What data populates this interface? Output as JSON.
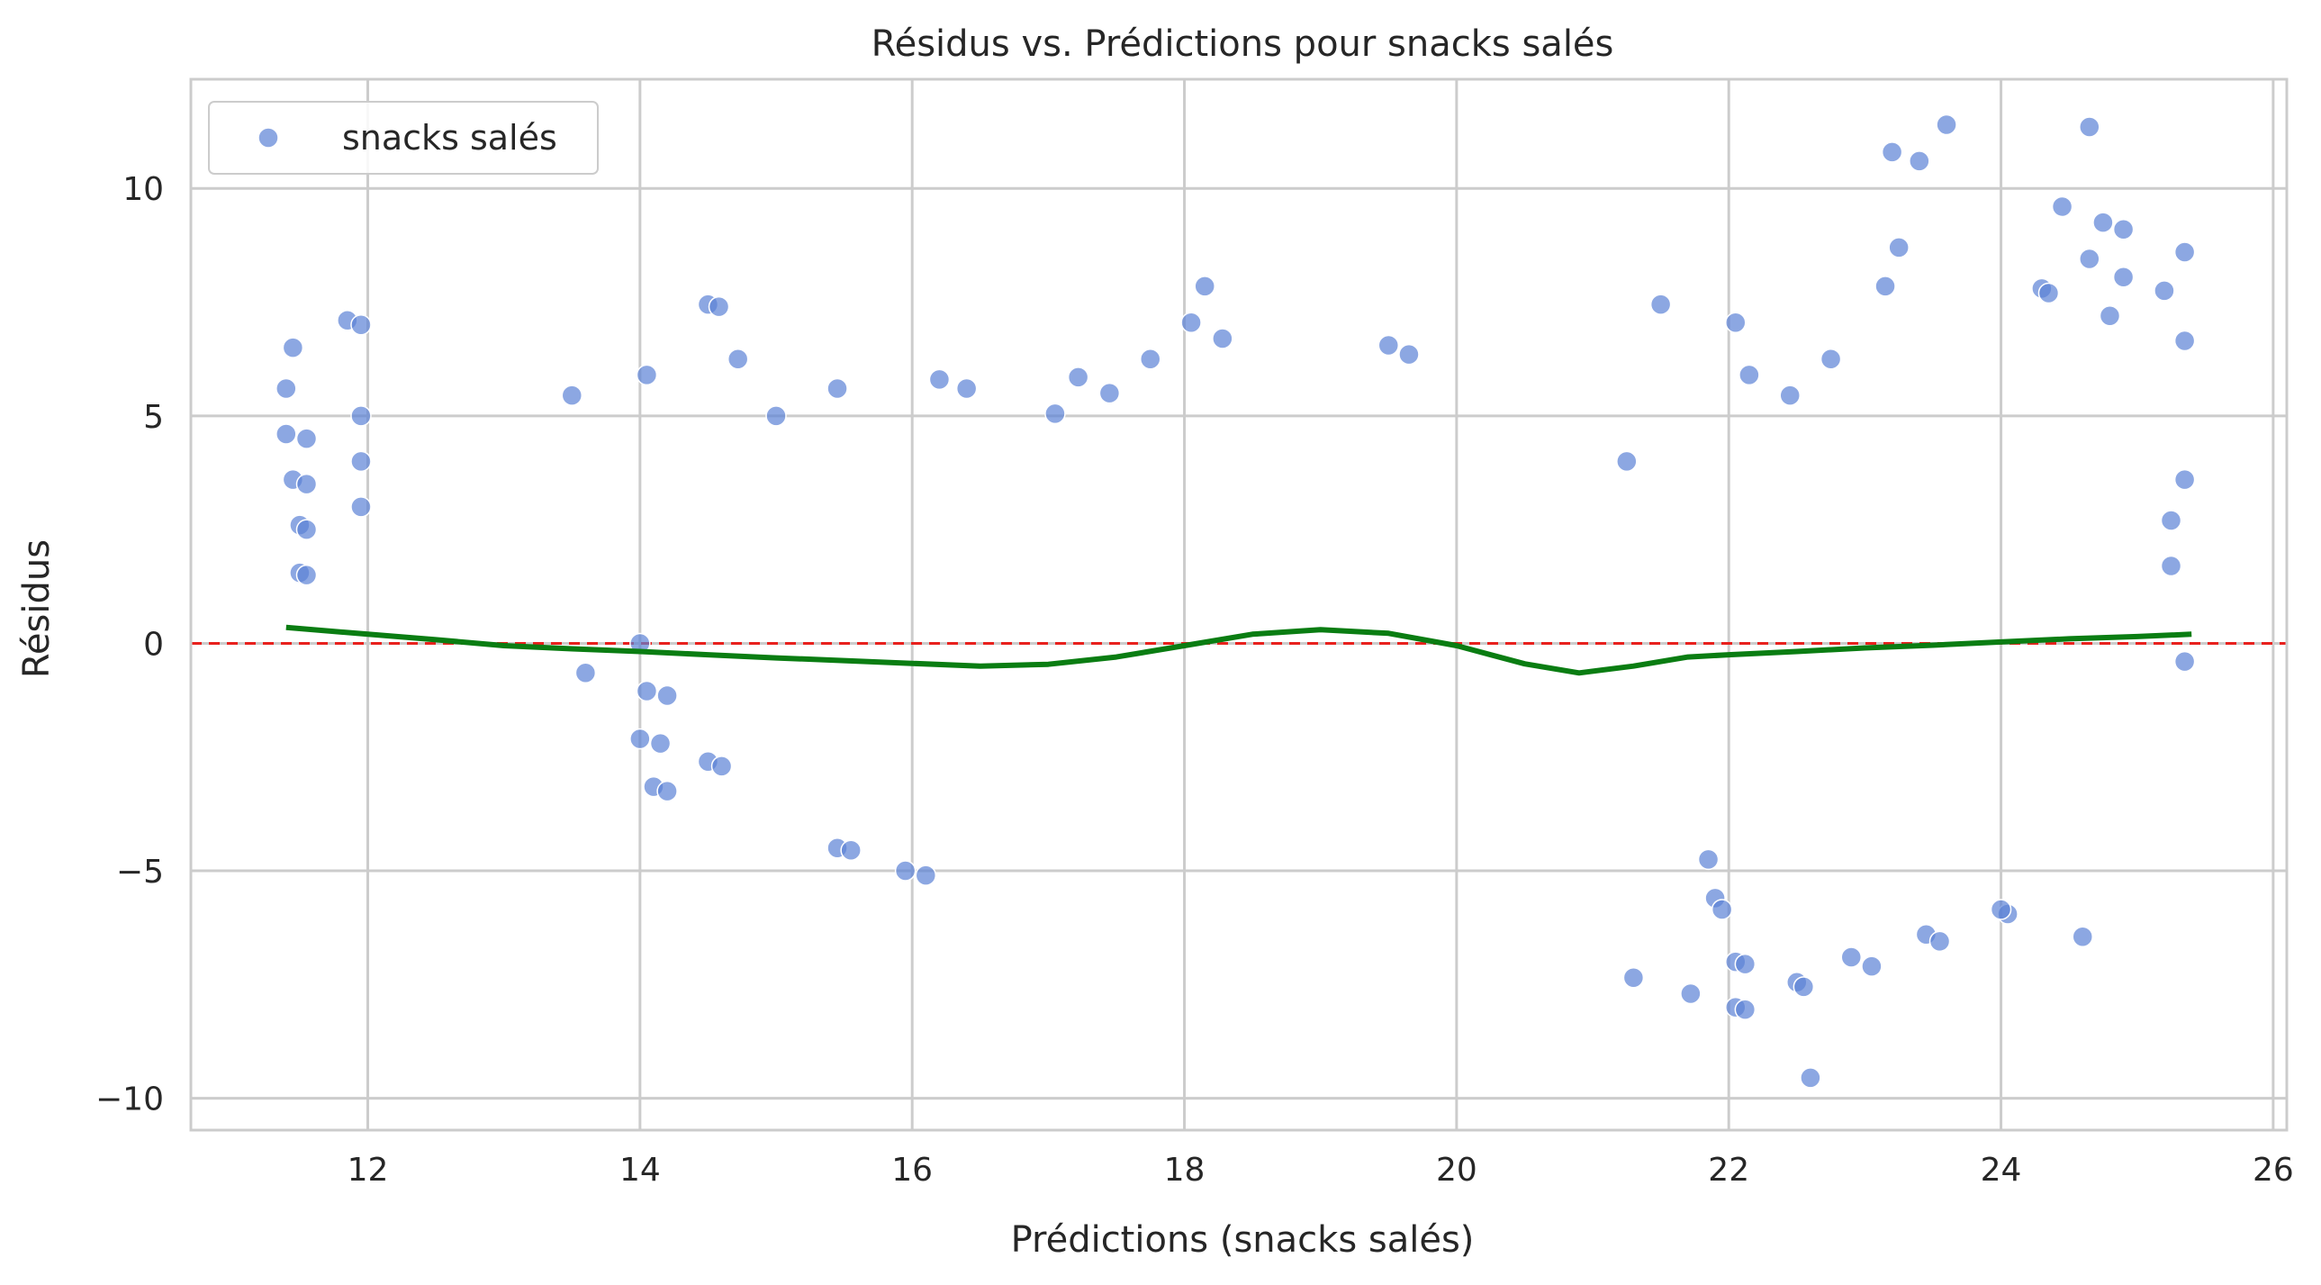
{
  "chart_data": {
    "type": "scatter",
    "title": "Résidus vs. Prédictions pour snacks salés",
    "xlabel": "Prédictions (snacks salés)",
    "ylabel": "Résidus",
    "xlim": [
      10.7,
      26.1
    ],
    "ylim": [
      -10.7,
      12.4
    ],
    "xticks": [
      12,
      14,
      16,
      18,
      20,
      22,
      24,
      26
    ],
    "yticks": [
      -10,
      -5,
      0,
      5,
      10
    ],
    "xtick_labels": [
      "12",
      "14",
      "16",
      "18",
      "20",
      "22",
      "24",
      "26"
    ],
    "ytick_labels": [
      "−10",
      "−5",
      "0",
      "5",
      "10"
    ],
    "grid": true,
    "legend_position": "top-left",
    "reference_line": {
      "y": 0,
      "style": "dashed",
      "color": "#e8211d"
    },
    "colors": {
      "points": "#5b82d6",
      "trend": "#0a7d12",
      "grid": "#cccccc",
      "axes": "#cccccc"
    },
    "series": [
      {
        "name": "snacks salés",
        "kind": "scatter",
        "points": [
          [
            11.4,
            5.6
          ],
          [
            11.45,
            6.5
          ],
          [
            11.4,
            4.6
          ],
          [
            11.45,
            3.6
          ],
          [
            11.5,
            2.6
          ],
          [
            11.5,
            1.55
          ],
          [
            11.55,
            4.5
          ],
          [
            11.55,
            3.5
          ],
          [
            11.55,
            2.5
          ],
          [
            11.55,
            1.5
          ],
          [
            11.85,
            7.1
          ],
          [
            11.95,
            7.0
          ],
          [
            11.95,
            5.0
          ],
          [
            11.95,
            4.0
          ],
          [
            11.95,
            3.0
          ],
          [
            13.5,
            5.45
          ],
          [
            14.05,
            5.9
          ],
          [
            14.5,
            7.45
          ],
          [
            14.58,
            7.4
          ],
          [
            14.72,
            6.25
          ],
          [
            15.0,
            5.0
          ],
          [
            15.45,
            5.6
          ],
          [
            16.2,
            5.8
          ],
          [
            16.4,
            5.6
          ],
          [
            17.05,
            5.05
          ],
          [
            17.22,
            5.85
          ],
          [
            17.45,
            5.5
          ],
          [
            17.75,
            6.25
          ],
          [
            18.05,
            7.05
          ],
          [
            18.15,
            7.85
          ],
          [
            18.28,
            6.7
          ],
          [
            19.5,
            6.55
          ],
          [
            19.65,
            6.35
          ],
          [
            21.25,
            4.0
          ],
          [
            21.5,
            7.45
          ],
          [
            21.3,
            -7.35
          ],
          [
            21.72,
            -7.7
          ],
          [
            22.05,
            7.05
          ],
          [
            22.15,
            5.9
          ],
          [
            22.45,
            5.45
          ],
          [
            22.75,
            6.25
          ],
          [
            23.15,
            7.85
          ],
          [
            23.2,
            10.8
          ],
          [
            23.25,
            8.7
          ],
          [
            23.4,
            10.6
          ],
          [
            23.6,
            11.4
          ],
          [
            24.3,
            7.8
          ],
          [
            24.35,
            7.7
          ],
          [
            24.45,
            9.6
          ],
          [
            24.65,
            8.45
          ],
          [
            24.65,
            11.35
          ],
          [
            24.75,
            9.25
          ],
          [
            24.9,
            9.1
          ],
          [
            24.9,
            8.05
          ],
          [
            24.8,
            7.2
          ],
          [
            25.2,
            7.75
          ],
          [
            25.25,
            2.7
          ],
          [
            25.25,
            1.7
          ],
          [
            25.35,
            8.6
          ],
          [
            25.35,
            6.65
          ],
          [
            25.35,
            3.6
          ],
          [
            25.35,
            -0.4
          ],
          [
            22.05,
            -7.0
          ],
          [
            22.12,
            -7.05
          ],
          [
            22.05,
            -8.0
          ],
          [
            22.12,
            -8.05
          ],
          [
            22.6,
            -9.55
          ],
          [
            22.5,
            -7.45
          ],
          [
            22.55,
            -7.55
          ],
          [
            22.9,
            -6.9
          ],
          [
            23.05,
            -7.1
          ],
          [
            23.45,
            -6.4
          ],
          [
            23.55,
            -6.55
          ],
          [
            24.6,
            -6.45
          ],
          [
            24.05,
            -5.95
          ],
          [
            24.0,
            -5.85
          ],
          [
            21.85,
            -4.75
          ],
          [
            21.9,
            -5.6
          ],
          [
            21.95,
            -5.85
          ],
          [
            16.1,
            -5.1
          ],
          [
            15.95,
            -5.0
          ],
          [
            15.45,
            -4.5
          ],
          [
            15.55,
            -4.55
          ],
          [
            14.1,
            -3.15
          ],
          [
            14.2,
            -3.25
          ],
          [
            14.0,
            -2.1
          ],
          [
            14.15,
            -2.2
          ],
          [
            14.05,
            -1.05
          ],
          [
            14.2,
            -1.15
          ],
          [
            14.5,
            -2.6
          ],
          [
            14.6,
            -2.7
          ],
          [
            13.6,
            -0.65
          ],
          [
            14.0,
            0.0
          ]
        ]
      },
      {
        "name": "",
        "kind": "trend",
        "points": [
          [
            11.4,
            0.35
          ],
          [
            12.0,
            0.2
          ],
          [
            12.5,
            0.08
          ],
          [
            13.0,
            -0.05
          ],
          [
            13.5,
            -0.12
          ],
          [
            14.0,
            -0.18
          ],
          [
            14.5,
            -0.25
          ],
          [
            15.0,
            -0.32
          ],
          [
            15.5,
            -0.38
          ],
          [
            16.0,
            -0.44
          ],
          [
            16.5,
            -0.5
          ],
          [
            17.0,
            -0.46
          ],
          [
            17.5,
            -0.3
          ],
          [
            18.0,
            -0.05
          ],
          [
            18.5,
            0.2
          ],
          [
            19.0,
            0.3
          ],
          [
            19.5,
            0.22
          ],
          [
            20.0,
            -0.05
          ],
          [
            20.5,
            -0.45
          ],
          [
            20.9,
            -0.65
          ],
          [
            21.3,
            -0.5
          ],
          [
            21.7,
            -0.3
          ],
          [
            22.0,
            -0.25
          ],
          [
            22.5,
            -0.18
          ],
          [
            23.0,
            -0.1
          ],
          [
            23.5,
            -0.04
          ],
          [
            24.0,
            0.03
          ],
          [
            24.5,
            0.1
          ],
          [
            25.0,
            0.15
          ],
          [
            25.4,
            0.2
          ]
        ]
      }
    ]
  }
}
